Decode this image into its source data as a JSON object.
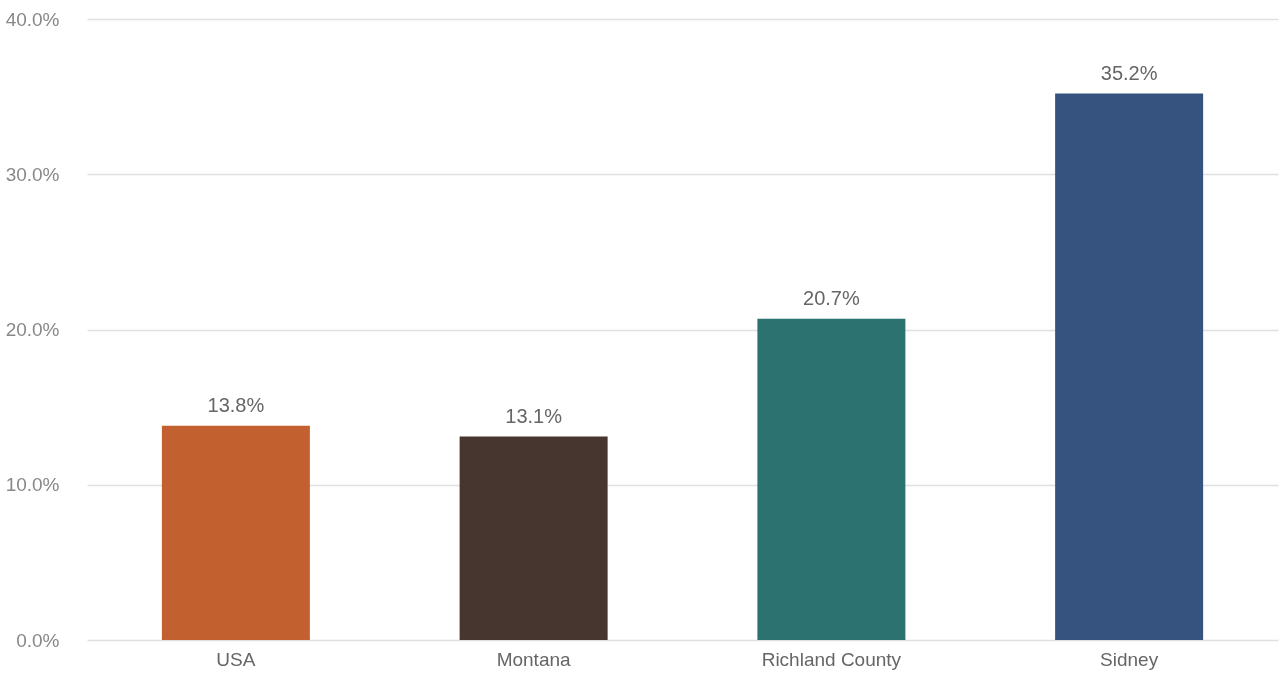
{
  "chart_data": {
    "type": "bar",
    "categories": [
      "USA",
      "Montana",
      "Richland County",
      "Sidney"
    ],
    "values": [
      13.8,
      13.1,
      20.7,
      35.2
    ],
    "colors": [
      "#c2612f",
      "#47352f",
      "#2c7270",
      "#36527e"
    ],
    "value_labels": [
      "13.8%",
      "13.1%",
      "20.7%",
      "35.2%"
    ],
    "ylim": [
      0,
      40
    ],
    "yticks": [
      {
        "value": 0,
        "label": "0.0%"
      },
      {
        "value": 10,
        "label": "10.0%"
      },
      {
        "value": 20,
        "label": "20.0%"
      },
      {
        "value": 30,
        "label": "30.0%"
      },
      {
        "value": 40,
        "label": "40.0%"
      }
    ],
    "grid": "y"
  }
}
